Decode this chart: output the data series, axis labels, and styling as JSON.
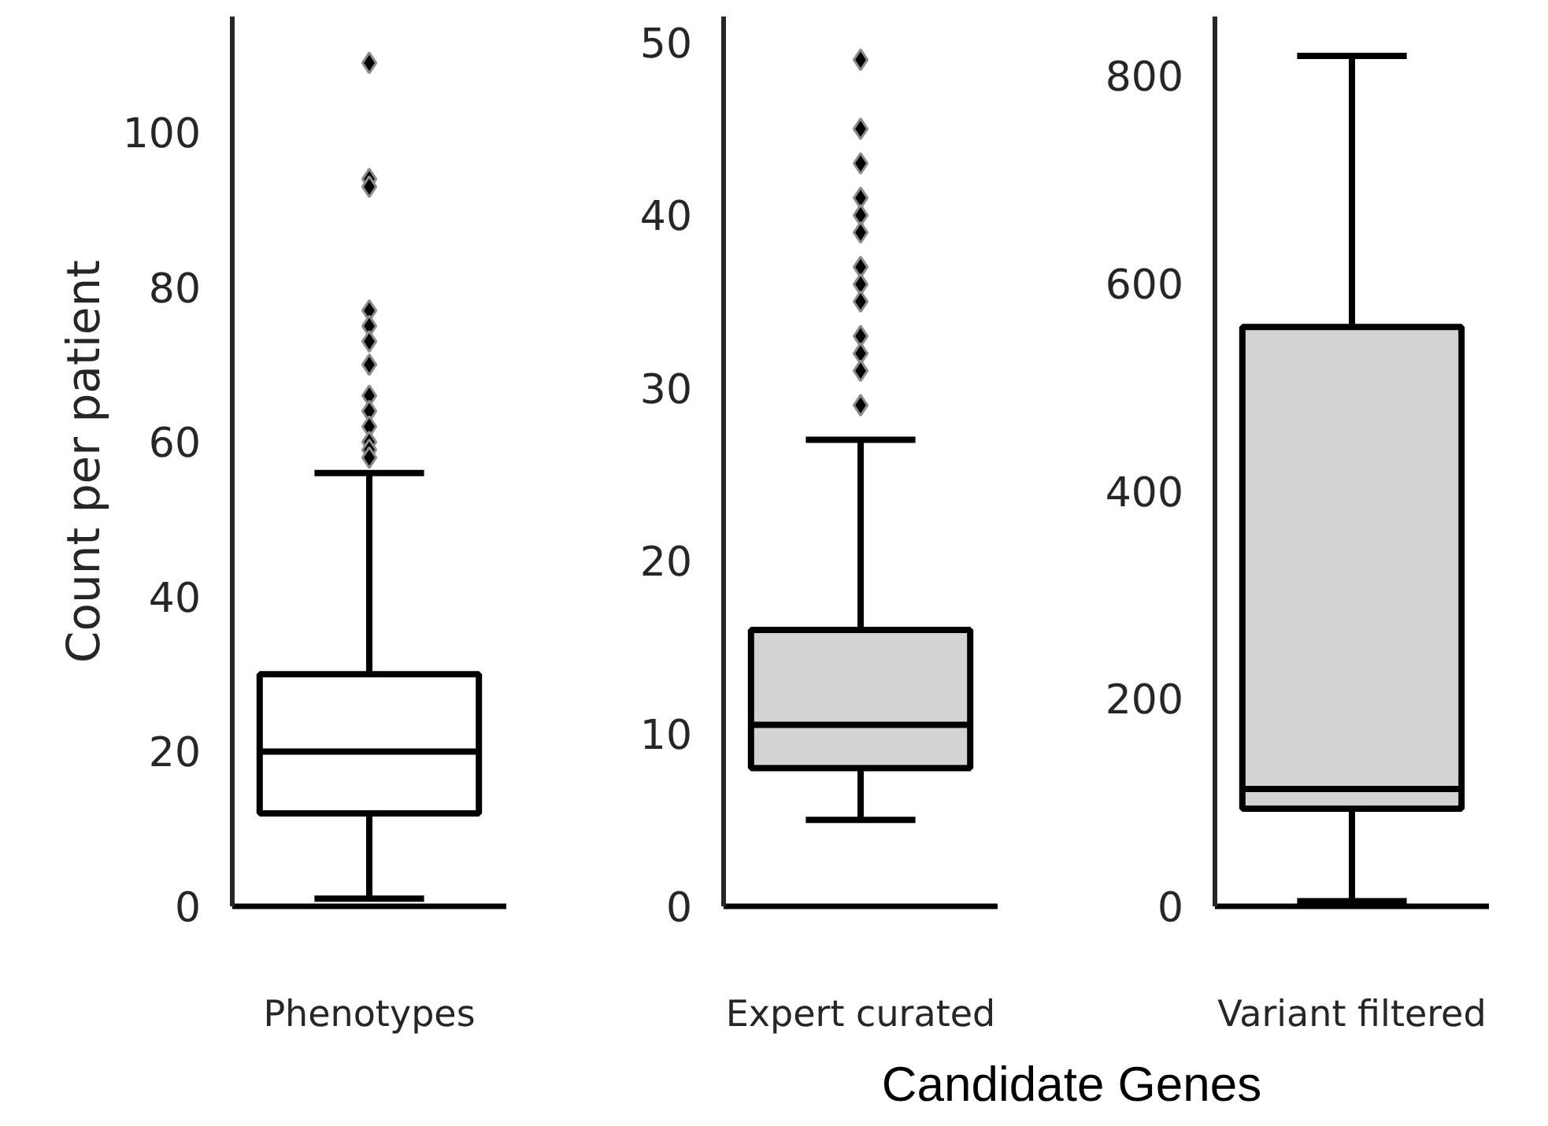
{
  "chart_data": [
    {
      "type": "box",
      "categories": [
        "Phenotypes"
      ],
      "ylabel": "Count per patient",
      "ylim": [
        0,
        115
      ],
      "yticks": [
        0,
        20,
        40,
        60,
        80,
        100
      ],
      "grid": false,
      "marker": "diamond",
      "color": "#ffffff",
      "boxes": [
        {
          "low": 1,
          "q1": 12,
          "median": 20,
          "q3": 30,
          "high": 56,
          "outliers": [
            109,
            94,
            93,
            77,
            75,
            73,
            70,
            66,
            64,
            62,
            60,
            59,
            58
          ]
        }
      ]
    },
    {
      "type": "box",
      "categories": [
        "Expert curated"
      ],
      "xlabel": "Candidate Genes",
      "ylim": [
        0,
        51.5
      ],
      "yticks": [
        0,
        10,
        20,
        30,
        40,
        50
      ],
      "grid": false,
      "marker": "diamond",
      "color": "#d3d3d3",
      "boxes": [
        {
          "low": 5,
          "q1": 8,
          "median": 10.5,
          "q3": 16,
          "high": 27,
          "outliers": [
            49,
            45,
            43,
            41,
            40,
            39,
            37,
            36,
            35,
            33,
            32,
            31,
            29
          ]
        }
      ]
    },
    {
      "type": "box",
      "categories": [
        "Variant filtered"
      ],
      "ylim": [
        0,
        857
      ],
      "yticks": [
        0,
        200,
        400,
        600,
        800
      ],
      "grid": false,
      "marker": "diamond",
      "color": "#d3d3d3",
      "boxes": [
        {
          "low": 5,
          "q1": 94,
          "median": 113,
          "q3": 558,
          "high": 819
        }
      ]
    }
  ]
}
